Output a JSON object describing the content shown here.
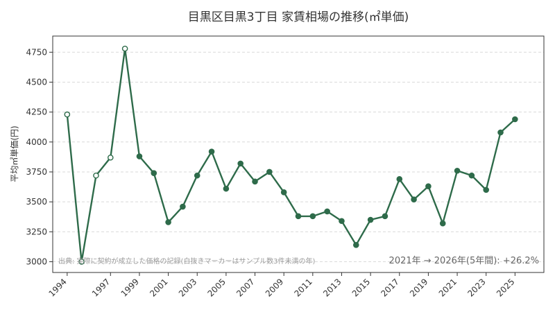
{
  "chart_data": {
    "type": "line",
    "title": "目黒区目黒3丁目 家賃相場の推移(㎡単価)",
    "xlabel": "",
    "ylabel": "平均㎡単価(円)",
    "ylim": [
      2910,
      4885
    ],
    "yticks": [
      3000,
      3250,
      3500,
      3750,
      4000,
      4250,
      4500,
      4750
    ],
    "xlim": [
      1993,
      2027
    ],
    "xticks": [
      1994,
      1997,
      1999,
      2001,
      2003,
      2005,
      2007,
      2009,
      2011,
      2013,
      2015,
      2017,
      2019,
      2021,
      2023,
      2025
    ],
    "grid": "horizontal dashed",
    "line_color": "#2e6b4a",
    "points": [
      {
        "x": 1994,
        "y": 4230,
        "open": true
      },
      {
        "x": 1995,
        "y": 3000,
        "open": true
      },
      {
        "x": 1996,
        "y": 3720,
        "open": true
      },
      {
        "x": 1997,
        "y": 3870,
        "open": true
      },
      {
        "x": 1998,
        "y": 4780,
        "open": true
      },
      {
        "x": 1999,
        "y": 3880,
        "open": false
      },
      {
        "x": 2000,
        "y": 3740,
        "open": false
      },
      {
        "x": 2001,
        "y": 3330,
        "open": false
      },
      {
        "x": 2002,
        "y": 3460,
        "open": false
      },
      {
        "x": 2003,
        "y": 3720,
        "open": false
      },
      {
        "x": 2004,
        "y": 3920,
        "open": false
      },
      {
        "x": 2005,
        "y": 3610,
        "open": false
      },
      {
        "x": 2006,
        "y": 3820,
        "open": false
      },
      {
        "x": 2007,
        "y": 3670,
        "open": false
      },
      {
        "x": 2008,
        "y": 3750,
        "open": false
      },
      {
        "x": 2009,
        "y": 3580,
        "open": false
      },
      {
        "x": 2010,
        "y": 3380,
        "open": false
      },
      {
        "x": 2011,
        "y": 3380,
        "open": false
      },
      {
        "x": 2012,
        "y": 3420,
        "open": false
      },
      {
        "x": 2013,
        "y": 3340,
        "open": false
      },
      {
        "x": 2014,
        "y": 3140,
        "open": false
      },
      {
        "x": 2015,
        "y": 3350,
        "open": false
      },
      {
        "x": 2016,
        "y": 3380,
        "open": false
      },
      {
        "x": 2017,
        "y": 3690,
        "open": false
      },
      {
        "x": 2018,
        "y": 3520,
        "open": false
      },
      {
        "x": 2019,
        "y": 3630,
        "open": false
      },
      {
        "x": 2020,
        "y": 3320,
        "open": false
      },
      {
        "x": 2021,
        "y": 3760,
        "open": false
      },
      {
        "x": 2022,
        "y": 3720,
        "open": false
      },
      {
        "x": 2023,
        "y": 3600,
        "open": false
      },
      {
        "x": 2024,
        "y": 4080,
        "open": false
      },
      {
        "x": 2025,
        "y": 4190,
        "open": false
      }
    ],
    "source_note": "出典: 実際に契約が成立した価格の記録(白抜きマーカーはサンプル数3件未満の年)",
    "change_note": "2021年 → 2026年(5年間): +26.2%"
  }
}
